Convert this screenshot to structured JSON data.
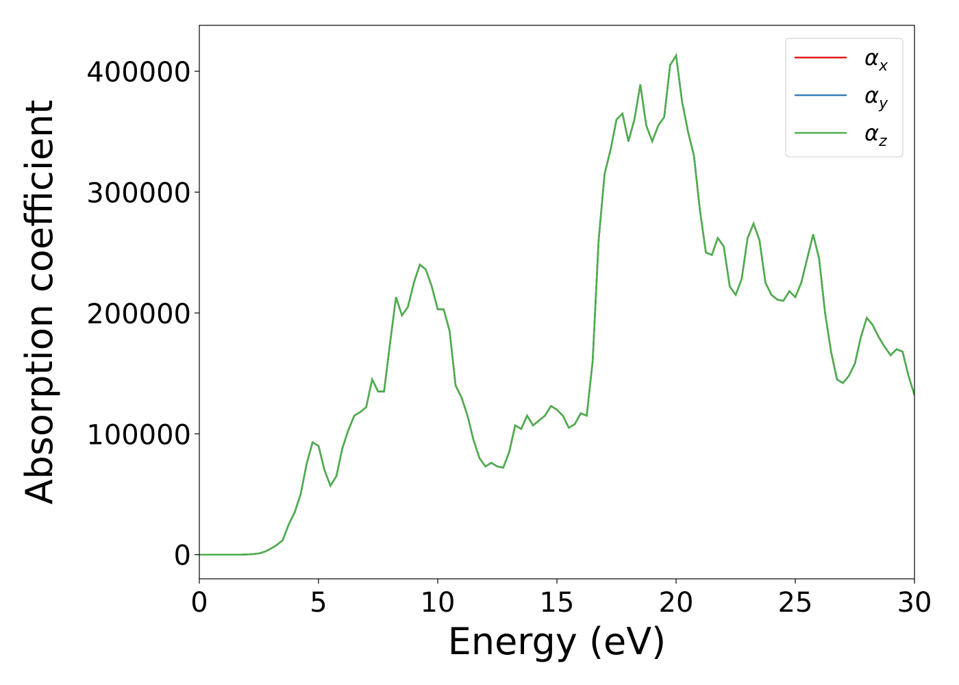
{
  "chart_data": {
    "type": "line",
    "xlabel": "Energy (eV)",
    "ylabel": "Absorption coefficient",
    "x": [
      0,
      0.25,
      0.5,
      0.75,
      1,
      1.25,
      1.5,
      1.75,
      2,
      2.25,
      2.5,
      2.75,
      3,
      3.25,
      3.5,
      3.75,
      4,
      4.25,
      4.5,
      4.75,
      5,
      5.25,
      5.5,
      5.75,
      6,
      6.25,
      6.5,
      6.75,
      7,
      7.25,
      7.5,
      7.75,
      8,
      8.25,
      8.5,
      8.75,
      9,
      9.25,
      9.5,
      9.75,
      10,
      10.25,
      10.5,
      10.75,
      11,
      11.25,
      11.5,
      11.75,
      12,
      12.25,
      12.5,
      12.75,
      13,
      13.25,
      13.5,
      13.75,
      14,
      14.25,
      14.5,
      14.75,
      15,
      15.25,
      15.5,
      15.75,
      16,
      16.25,
      16.5,
      16.75,
      17,
      17.25,
      17.5,
      17.75,
      18,
      18.25,
      18.5,
      18.75,
      19,
      19.25,
      19.5,
      19.75,
      20,
      20.25,
      20.5,
      20.75,
      21,
      21.25,
      21.5,
      21.75,
      22,
      22.25,
      22.5,
      22.75,
      23,
      23.25,
      23.5,
      23.75,
      24,
      24.25,
      24.5,
      24.75,
      25,
      25.25,
      25.5,
      25.75,
      26,
      26.25,
      26.5,
      26.75,
      27,
      27.25,
      27.5,
      27.75,
      28,
      28.25,
      28.5,
      28.75,
      29,
      29.25,
      29.5,
      29.75,
      30
    ],
    "series": [
      {
        "name": "αx",
        "color": "#e41a1c",
        "values": [
          0,
          0,
          0,
          0,
          0,
          0,
          0,
          0,
          200,
          500,
          1000,
          2500,
          5000,
          8000,
          12000,
          25000,
          35000,
          50000,
          75000,
          93000,
          90000,
          70000,
          57000,
          65000,
          88000,
          103000,
          115000,
          118000,
          122000,
          145000,
          135000,
          135000,
          175000,
          213000,
          198000,
          205000,
          225000,
          240000,
          236000,
          222000,
          203000,
          203000,
          185000,
          140000,
          130000,
          115000,
          95000,
          80000,
          73000,
          76000,
          73000,
          72000,
          85000,
          107000,
          104000,
          115000,
          107000,
          111000,
          115000,
          123000,
          120000,
          115000,
          105000,
          108000,
          117000,
          115000,
          160000,
          260000,
          315000,
          335000,
          360000,
          365000,
          342000,
          360000,
          389000,
          355000,
          342000,
          355000,
          362000,
          405000,
          413000,
          375000,
          350000,
          330000,
          285000,
          250000,
          248000,
          262000,
          255000,
          222000,
          215000,
          228000,
          262000,
          274000,
          260000,
          225000,
          215000,
          211000,
          210000,
          218000,
          213000,
          225000,
          245000,
          265000,
          245000,
          200000,
          168000,
          145000,
          142000,
          148000,
          158000,
          180000,
          196000,
          190000,
          180000,
          172000,
          165000,
          170000,
          168000,
          148000,
          132000
        ]
      },
      {
        "name": "αy",
        "color": "#377eb8",
        "values": [
          0,
          0,
          0,
          0,
          0,
          0,
          0,
          0,
          200,
          500,
          1000,
          2500,
          5000,
          8000,
          12000,
          25000,
          35000,
          50000,
          75000,
          93000,
          90000,
          70000,
          57000,
          65000,
          88000,
          103000,
          115000,
          118000,
          122000,
          145000,
          135000,
          135000,
          175000,
          213000,
          198000,
          205000,
          225000,
          240000,
          236000,
          222000,
          203000,
          203000,
          185000,
          140000,
          130000,
          115000,
          95000,
          80000,
          73000,
          76000,
          73000,
          72000,
          85000,
          107000,
          104000,
          115000,
          107000,
          111000,
          115000,
          123000,
          120000,
          115000,
          105000,
          108000,
          117000,
          115000,
          160000,
          260000,
          315000,
          335000,
          360000,
          365000,
          342000,
          360000,
          389000,
          355000,
          342000,
          355000,
          362000,
          405000,
          413000,
          375000,
          350000,
          330000,
          285000,
          250000,
          248000,
          262000,
          255000,
          222000,
          215000,
          228000,
          262000,
          274000,
          260000,
          225000,
          215000,
          211000,
          210000,
          218000,
          213000,
          225000,
          245000,
          265000,
          245000,
          200000,
          168000,
          145000,
          142000,
          148000,
          158000,
          180000,
          196000,
          190000,
          180000,
          172000,
          165000,
          170000,
          168000,
          148000,
          132000
        ]
      },
      {
        "name": "αz",
        "color": "#4daf4a",
        "values": [
          0,
          0,
          0,
          0,
          0,
          0,
          0,
          0,
          200,
          500,
          1000,
          2500,
          5000,
          8000,
          12000,
          25000,
          35000,
          50000,
          75000,
          93000,
          90000,
          70000,
          57000,
          65000,
          88000,
          103000,
          115000,
          118000,
          122000,
          145000,
          135000,
          135000,
          175000,
          213000,
          198000,
          205000,
          225000,
          240000,
          236000,
          222000,
          203000,
          203000,
          185000,
          140000,
          130000,
          115000,
          95000,
          80000,
          73000,
          76000,
          73000,
          72000,
          85000,
          107000,
          104000,
          115000,
          107000,
          111000,
          115000,
          123000,
          120000,
          115000,
          105000,
          108000,
          117000,
          115000,
          160000,
          260000,
          315000,
          335000,
          360000,
          365000,
          342000,
          360000,
          389000,
          355000,
          342000,
          355000,
          362000,
          405000,
          413000,
          375000,
          350000,
          330000,
          285000,
          250000,
          248000,
          262000,
          255000,
          222000,
          215000,
          228000,
          262000,
          274000,
          260000,
          225000,
          215000,
          211000,
          210000,
          218000,
          213000,
          225000,
          245000,
          265000,
          245000,
          200000,
          168000,
          145000,
          142000,
          148000,
          158000,
          180000,
          196000,
          190000,
          180000,
          172000,
          165000,
          170000,
          168000,
          148000,
          132000
        ]
      }
    ],
    "xlim": [
      0,
      30
    ],
    "xticks": [
      0,
      5,
      10,
      15,
      20,
      25,
      30
    ],
    "ylim": [
      -20000,
      438000
    ],
    "yticks": [
      0,
      100000,
      200000,
      300000,
      400000
    ],
    "grid": false,
    "legend": "upper right"
  }
}
